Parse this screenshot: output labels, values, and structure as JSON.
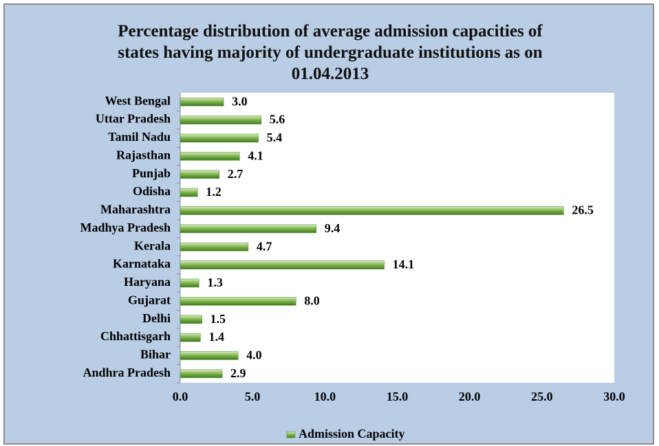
{
  "chart_data": {
    "type": "bar",
    "orientation": "horizontal",
    "title": "Percentage distribution of average admission capacities of states having majority of undergraduate institutions as on 01.04.2013",
    "categories": [
      "Andhra Pradesh",
      "Bihar",
      "Chhattisgarh",
      "Delhi",
      "Gujarat",
      "Haryana",
      "Karnataka",
      "Kerala",
      "Madhya Pradesh",
      "Maharashtra",
      "Odisha",
      "Punjab",
      "Rajasthan",
      "Tamil Nadu",
      "Uttar Pradesh",
      "West Bengal"
    ],
    "series": [
      {
        "name": "Admission Capacity",
        "color": "#4f8a2a",
        "values": [
          2.9,
          4.0,
          1.4,
          1.5,
          8.0,
          1.3,
          14.1,
          4.7,
          9.4,
          26.5,
          1.2,
          2.7,
          4.1,
          5.4,
          5.6,
          3.0
        ],
        "value_labels": [
          "2.9",
          "4.0",
          "1.4",
          "1.5",
          "8.0",
          "1.3",
          "14.1",
          "4.7",
          "9.4",
          "26.5",
          "1.2",
          "2.7",
          "4.1",
          "5.4",
          "5.6",
          "3.0"
        ]
      }
    ],
    "xlim": [
      0,
      30
    ],
    "xticks": [
      {
        "value": 0,
        "label": "0.0"
      },
      {
        "value": 5,
        "label": "5.0"
      },
      {
        "value": 10,
        "label": "10.0"
      },
      {
        "value": 15,
        "label": "15.0"
      },
      {
        "value": 20,
        "label": "20.0"
      },
      {
        "value": 25,
        "label": "25.0"
      },
      {
        "value": 30,
        "label": "30.0"
      }
    ],
    "legend": "bottom"
  }
}
